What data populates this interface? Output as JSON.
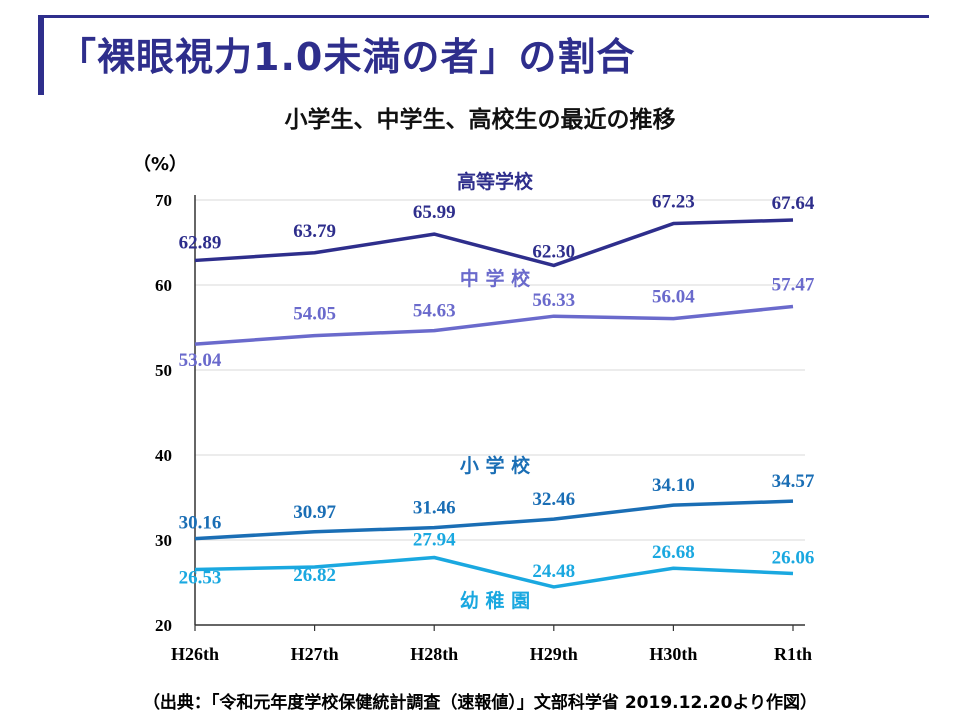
{
  "title": "「裸眼視力1.0未満の者」の割合",
  "subtitle": "小学生、中学生、高校生の最近の推移",
  "source": "（出典：「令和元年度学校保健統計調査（速報値）」文部科学省 2019.12.20より作図）",
  "colors": {
    "title": "#2e2e8c",
    "high_school": "#2e2e8c",
    "middle_school": "#6a6acc",
    "elementary": "#1a6eb5",
    "kindergarten": "#1aa8e0",
    "axis": "#333333",
    "grid": "#d9d9d9"
  },
  "chart_data": {
    "type": "line",
    "ylabel": "（%）",
    "xlabel": "",
    "ylim": [
      20,
      70
    ],
    "yticks": [
      20,
      30,
      40,
      50,
      60,
      70
    ],
    "categories": [
      "H26th",
      "H27th",
      "H28th",
      "H29th",
      "H30th",
      "R1th"
    ],
    "grid": "horizontal",
    "series": [
      {
        "name": "高等学校",
        "values": [
          62.89,
          63.79,
          65.99,
          62.3,
          67.23,
          67.64
        ],
        "color": "#2e2e8c"
      },
      {
        "name": "中 学 校",
        "values": [
          53.04,
          54.05,
          54.63,
          56.33,
          56.04,
          57.47
        ],
        "color": "#6a6acc"
      },
      {
        "name": "小 学 校",
        "values": [
          30.16,
          30.97,
          31.46,
          32.46,
          34.1,
          34.57
        ],
        "color": "#1a6eb5"
      },
      {
        "name": "幼 稚 園",
        "values": [
          26.53,
          26.82,
          27.94,
          24.48,
          26.68,
          26.06
        ],
        "color": "#1aa8e0"
      }
    ],
    "value_labels": [
      [
        "62.89",
        "63.79",
        "65.99",
        "62.30",
        "67.23",
        "67.64"
      ],
      [
        "53.04",
        "54.05",
        "54.63",
        "56.33",
        "56.04",
        "57.47"
      ],
      [
        "30.16",
        "30.97",
        "31.46",
        "32.46",
        "34.10",
        "34.57"
      ],
      [
        "26.53",
        "26.82",
        "27.94",
        "24.48",
        "26.68",
        "26.06"
      ]
    ]
  }
}
